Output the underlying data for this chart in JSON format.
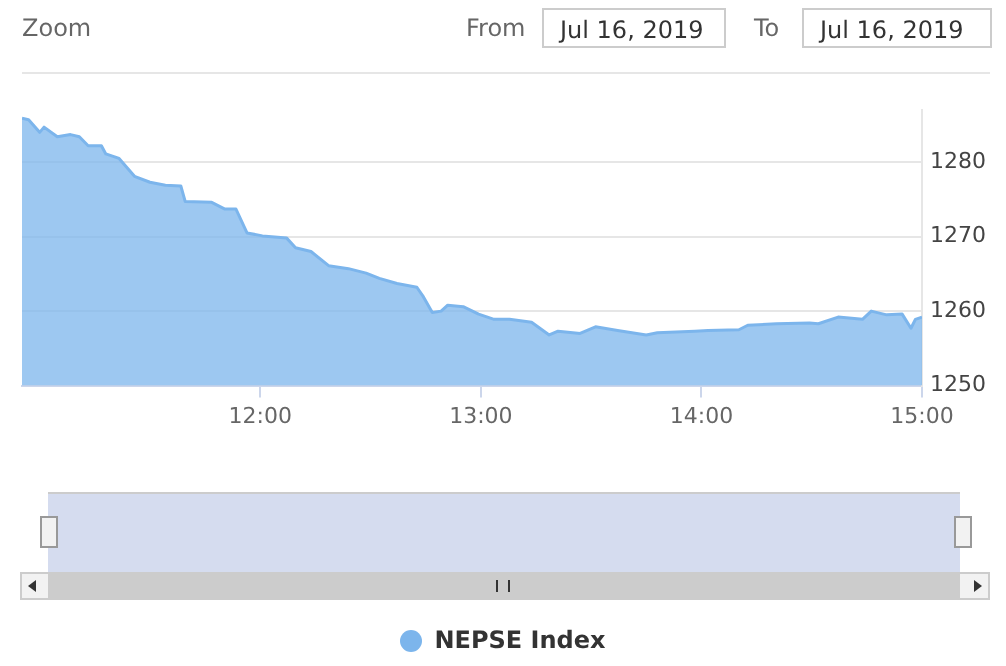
{
  "chart_data": {
    "type": "area",
    "title": null,
    "annotations": [
      "Zoom",
      "From",
      "Jul 16, 2019",
      "To",
      "Jul 16, 2019"
    ],
    "x": [
      10.92,
      10.95,
      11.0,
      11.02,
      11.08,
      11.14,
      11.18,
      11.22,
      11.28,
      11.3,
      11.36,
      11.43,
      11.5,
      11.57,
      11.64,
      11.66,
      11.78,
      11.84,
      11.89,
      11.94,
      12.01,
      12.12,
      12.16,
      12.23,
      12.31,
      12.4,
      12.48,
      12.54,
      12.62,
      12.71,
      12.74,
      12.78,
      12.82,
      12.85,
      12.92,
      12.99,
      13.06,
      13.13,
      13.23,
      13.31,
      13.35,
      13.45,
      13.52,
      13.62,
      13.75,
      13.8,
      13.97,
      14.03,
      14.17,
      14.21,
      14.34,
      14.49,
      14.53,
      14.62,
      14.73,
      14.77,
      14.84,
      14.91,
      14.95,
      14.97,
      15.0
    ],
    "series": [
      {
        "name": "NEPSE Index",
        "color": "#7cb5ec",
        "values": [
          1285.9,
          1285.7,
          1284.0,
          1284.7,
          1283.4,
          1283.7,
          1283.4,
          1282.2,
          1282.2,
          1281.1,
          1280.5,
          1278.1,
          1277.3,
          1276.9,
          1276.8,
          1274.7,
          1274.6,
          1273.7,
          1273.7,
          1270.5,
          1270.1,
          1269.8,
          1268.5,
          1268.0,
          1266.1,
          1265.7,
          1265.1,
          1264.4,
          1263.7,
          1263.2,
          1261.9,
          1259.8,
          1260.0,
          1260.8,
          1260.6,
          1259.6,
          1258.9,
          1258.9,
          1258.5,
          1256.8,
          1257.3,
          1257.0,
          1257.9,
          1257.4,
          1256.8,
          1257.1,
          1257.3,
          1257.4,
          1257.5,
          1258.1,
          1258.3,
          1258.4,
          1258.3,
          1259.2,
          1258.9,
          1260.0,
          1259.5,
          1259.6,
          1257.7,
          1258.9,
          1259.2
        ]
      }
    ],
    "xlim": [
      10.92,
      15.0
    ],
    "xticks": [
      {
        "value": 12,
        "label": "12:00"
      },
      {
        "value": 13,
        "label": "13:00"
      },
      {
        "value": 14,
        "label": "14:00"
      },
      {
        "value": 15,
        "label": "15:00"
      }
    ],
    "ylim": [
      1250,
      1287
    ],
    "yticks": [
      1250,
      1260,
      1270,
      1280
    ],
    "grid": "y",
    "legend": "bottom",
    "marker": "none",
    "line_style": "solid"
  }
}
